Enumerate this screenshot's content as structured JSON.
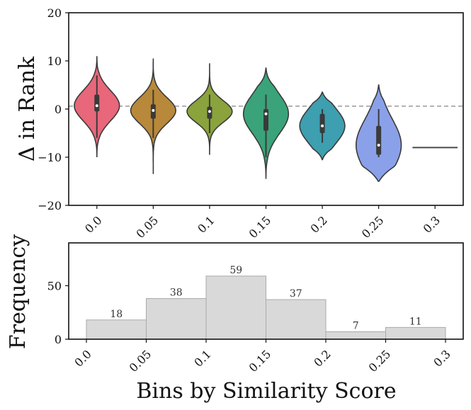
{
  "chart_data": [
    {
      "type": "violin",
      "ylabel": "Δ in Rank",
      "xlabel": "",
      "ylim": [
        -20,
        20
      ],
      "yticks": [
        "20",
        "10",
        "0",
        "−10",
        "−20"
      ],
      "ytick_values": [
        20,
        10,
        0,
        -10,
        -20
      ],
      "reference_line": 0.6,
      "categories": [
        "0.0",
        "0.05",
        "0.1",
        "0.15",
        "0.2",
        "0.25",
        "0.3"
      ],
      "colors": [
        "#e8677a",
        "#b8893a",
        "#8aa33c",
        "#3aa379",
        "#3d9fb0",
        "#8aa0e8",
        "#4a4a4a"
      ],
      "series": [
        {
          "name": "0.0",
          "min": -10,
          "max": 11,
          "q1": -0.5,
          "median": 0.7,
          "q3": 3.0,
          "whisker_low": -6,
          "whisker_high": 7
        },
        {
          "name": "0.05",
          "min": -13.5,
          "max": 10.5,
          "q1": -2.0,
          "median": -0.3,
          "q3": 1.0,
          "whisker_low": -6,
          "whisker_high": 4
        },
        {
          "name": "0.1",
          "min": -9.5,
          "max": 9.5,
          "q1": -2.0,
          "median": -0.5,
          "q3": 0.5,
          "whisker_low": -5,
          "whisker_high": 3
        },
        {
          "name": "0.15",
          "min": -14.5,
          "max": 8.5,
          "q1": -4.5,
          "median": -1.0,
          "q3": 0.0,
          "whisker_low": -10,
          "whisker_high": 3
        },
        {
          "name": "0.2",
          "min": -10.5,
          "max": 3.5,
          "q1": -5.0,
          "median": -3.5,
          "q3": -1.0,
          "whisker_low": -7,
          "whisker_high": 0
        },
        {
          "name": "0.25",
          "min": -15,
          "max": 5,
          "q1": -9.5,
          "median": -7.5,
          "q3": -3.5,
          "whisker_low": -10,
          "whisker_high": 0
        },
        {
          "name": "0.3",
          "single_value": -8
        }
      ]
    },
    {
      "type": "bar",
      "ylabel": "Frequency",
      "xlabel": "Bins by Similarity Score",
      "ylim": [
        0,
        90
      ],
      "yticks": [
        "50",
        "0"
      ],
      "ytick_values": [
        50,
        0
      ],
      "bin_edges": [
        "0.0",
        "0.05",
        "0.1",
        "0.15",
        "0.2",
        "0.25",
        "0.3"
      ],
      "values": [
        18,
        38,
        59,
        37,
        7,
        11
      ],
      "value_labels": [
        "18",
        "38",
        "59",
        "37",
        "7",
        "11"
      ],
      "bar_color": "#d9d9d9"
    }
  ]
}
